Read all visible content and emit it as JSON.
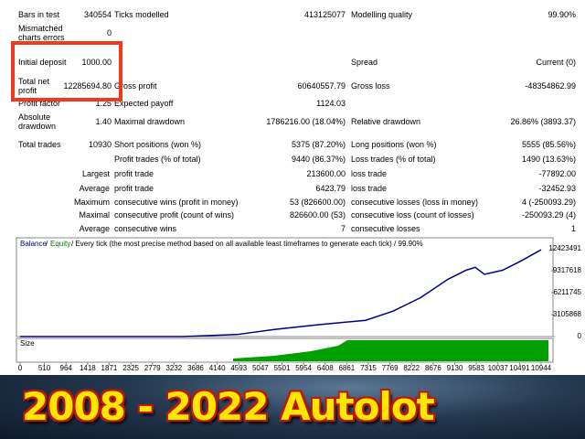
{
  "table": {
    "rows": [
      [
        "Bars in test",
        "340554",
        "Ticks modelled",
        "413125077",
        "Modelling quality",
        "99.90%"
      ],
      [
        "Mismatched charts errors",
        "0",
        null,
        null,
        null,
        null
      ],
      [
        "Initial deposit",
        "1000.00",
        null,
        null,
        "Spread",
        "Current (0)"
      ],
      [
        "Total net profit",
        "12285694.80",
        "Gross profit",
        "60640557.79",
        "Gross loss",
        "-48354862.99"
      ],
      [
        "Profit factor",
        "1.25",
        "Expected payoff",
        "1124.03",
        null,
        null
      ],
      [
        "Absolute drawdown",
        "1.40",
        "Maximal drawdown",
        "1786216.00 (18.04%)",
        "Relative drawdown",
        "26.86% (3893.37)"
      ],
      [
        "Total trades",
        "10930",
        "Short positions (won %)",
        "5375 (87.20%)",
        "Long positions (won %)",
        "5555 (85.56%)"
      ],
      [
        null,
        null,
        "Profit trades (% of total)",
        "9440 (86.37%)",
        "Loss trades (% of total)",
        "1490 (13.63%)"
      ],
      [
        "Largest",
        null,
        "profit trade",
        "213600.00",
        "loss trade",
        "-77892.00"
      ],
      [
        "Average",
        null,
        "profit trade",
        "6423.79",
        "loss trade",
        "-32452.93"
      ],
      [
        "Maximum",
        null,
        "consecutive wins (profit in money)",
        "53 (826600.00)",
        "consecutive losses (loss in money)",
        "4 (-250093.29)"
      ],
      [
        "Maximal",
        null,
        "consecutive profit (count of wins)",
        "826600.00 (53)",
        "consecutive loss (count of losses)",
        "-250093.29 (4)"
      ],
      [
        "Average",
        null,
        "consecutive wins",
        "7",
        "consecutive losses",
        "1"
      ]
    ]
  },
  "chart": {
    "legend": {
      "balance": "Balance",
      "sep": "/",
      "equity": "Equity",
      "rest": "/ Every tick (the most precise method based on all available least timeframes to generate each tick) / 99.90%"
    },
    "size_label": "Size",
    "balance_color": "#00008b",
    "equity_color": "#008000",
    "xlim": [
      0,
      10944
    ],
    "ylim": [
      0,
      12423491
    ],
    "xticks": [
      0,
      510,
      964,
      1418,
      1871,
      2325,
      2779,
      3232,
      3686,
      4140,
      4593,
      5047,
      5501,
      5954,
      6408,
      6861,
      7315,
      7769,
      8222,
      8676,
      9130,
      9583,
      10037,
      10491,
      10944
    ],
    "yticks": [
      0,
      3105868,
      6211745,
      9317618,
      12423491
    ],
    "x": [
      0,
      3418,
      4570,
      5338,
      6298,
      7258,
      7834,
      8410,
      8986,
      9370,
      9562,
      9754,
      10138,
      10522,
      10944
    ],
    "balance": [
      1000,
      1000,
      300000,
      1000000,
      1700000,
      2300000,
      3600000,
      5500000,
      8100000,
      9400000,
      9800000,
      8800000,
      9400000,
      10700000,
      12286694
    ]
  },
  "banner": {
    "title": "2008 - 2022 Autolot"
  }
}
